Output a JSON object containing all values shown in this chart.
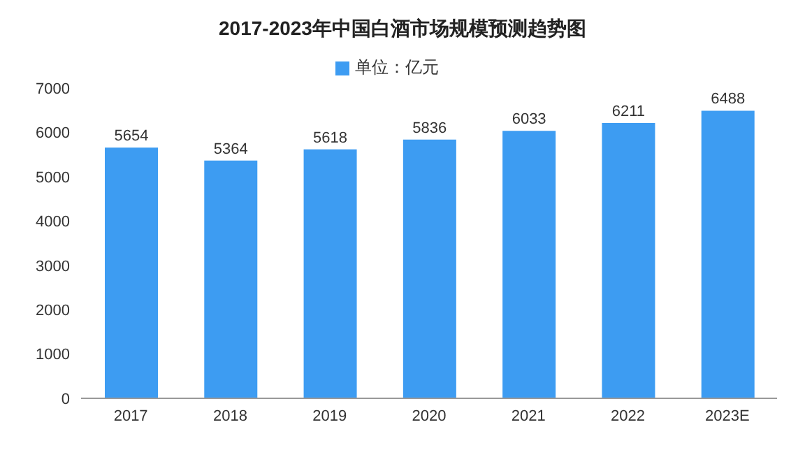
{
  "chart_data": {
    "type": "bar",
    "title": "2017-2023年中国白酒市场规模预测趋势图",
    "categories": [
      "2017",
      "2018",
      "2019",
      "2020",
      "2021",
      "2022",
      "2023E"
    ],
    "series": [
      {
        "name": "单位：亿元",
        "color": "#3d9cf2",
        "values": [
          5654,
          5364,
          5618,
          5836,
          6033,
          6211,
          6488
        ]
      }
    ],
    "ylim": [
      0,
      7000
    ],
    "yticks": [
      0,
      1000,
      2000,
      3000,
      4000,
      5000,
      6000,
      7000
    ],
    "data_labels": true,
    "legend": "top",
    "grid": false
  }
}
